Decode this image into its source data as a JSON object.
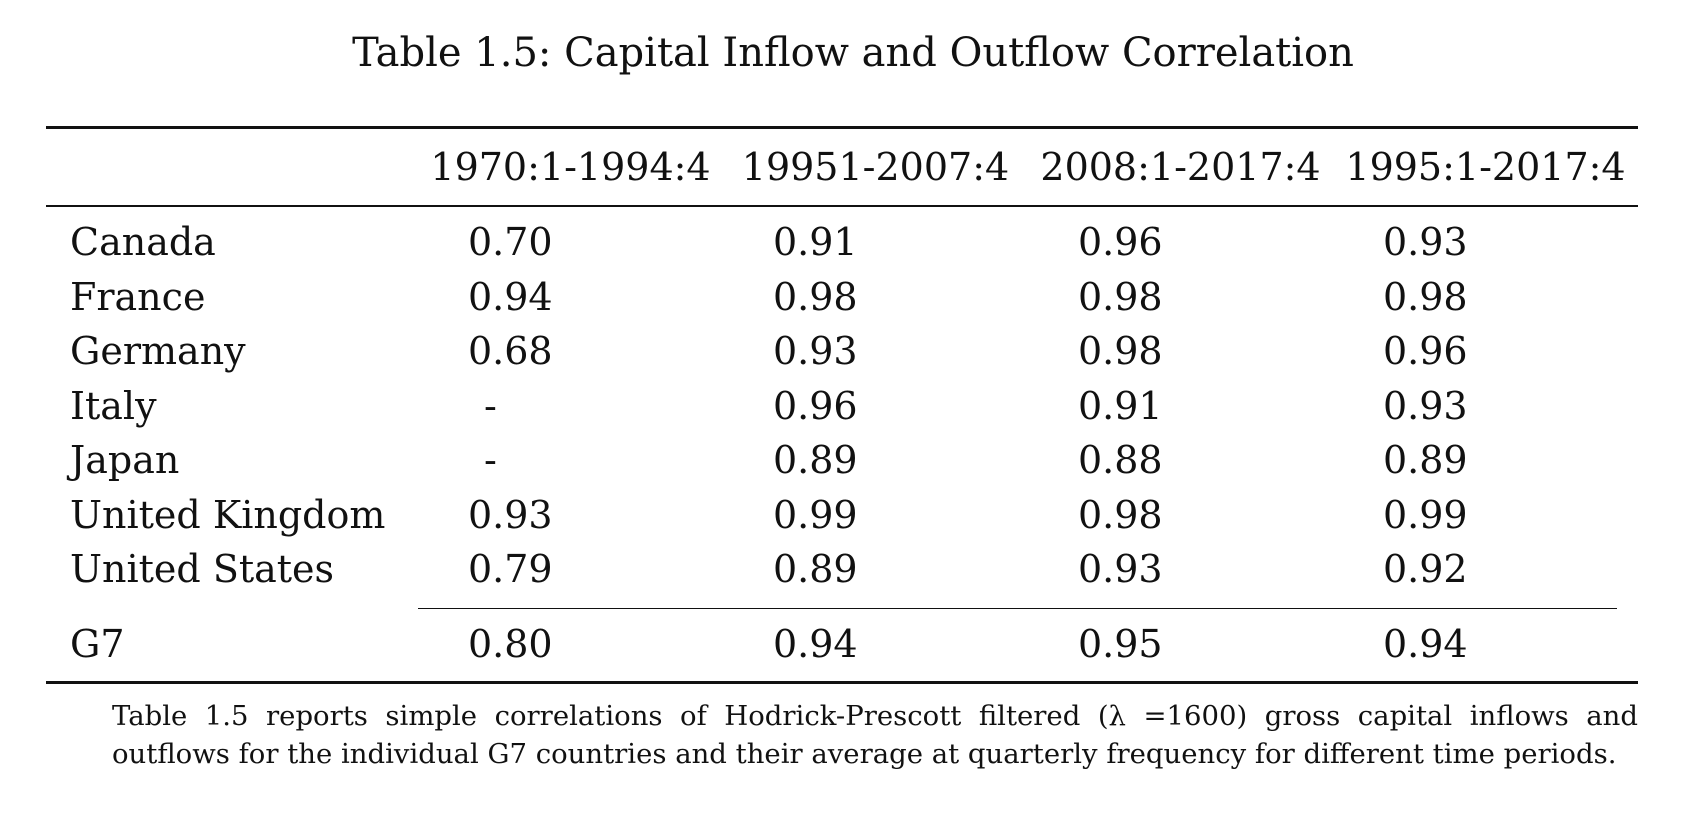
{
  "caption": "Table 1.5: Capital Inflow and Outflow Correlation",
  "table": {
    "headers": [
      "",
      "1970:1-1994:4",
      "19951-2007:4",
      "2008:1-2017:4",
      "1995:1-2017:4"
    ],
    "rows": [
      [
        "Canada",
        "0.70",
        "0.91",
        "0.96",
        "0.93"
      ],
      [
        "France",
        "0.94",
        "0.98",
        "0.98",
        "0.98"
      ],
      [
        "Germany",
        "0.68",
        "0.93",
        "0.98",
        "0.96"
      ],
      [
        "Italy",
        "-",
        "0.96",
        "0.91",
        "0.93"
      ],
      [
        "Japan",
        "-",
        "0.89",
        "0.88",
        "0.89"
      ],
      [
        "United Kingdom",
        "0.93",
        "0.99",
        "0.98",
        "0.99"
      ],
      [
        "United States",
        "0.79",
        "0.89",
        "0.93",
        "0.92"
      ]
    ],
    "total_row": [
      "G7",
      "0.80",
      "0.94",
      "0.95",
      "0.94"
    ]
  },
  "note": "Table 1.5 reports simple correlations of Hodrick-Prescott filtered (λ =1600) gross capital inflows and outflows for the individual G7 countries and their average at quarterly frequency for different time periods."
}
